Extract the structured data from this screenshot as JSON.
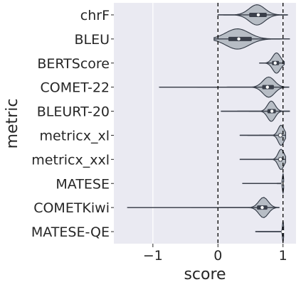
{
  "chart_data": {
    "type": "violin",
    "orientation": "horizontal",
    "xlabel": "score",
    "ylabel": "metric",
    "xlim": [
      -1.6,
      1.2
    ],
    "xticks": [
      -1,
      0,
      1
    ],
    "xtick_labels": [
      "−1",
      "0",
      "1"
    ],
    "reference_lines": [
      0,
      1
    ],
    "grid": true,
    "categories": [
      "chrF",
      "BLEU",
      "BERTScore",
      "COMET-22",
      "BLEURT-20",
      "metricx_xl",
      "metricx_xxl",
      "MATESE",
      "COMETKiwi",
      "MATESE-QE"
    ],
    "distributions": [
      {
        "metric": "chrF",
        "min": 0.0,
        "q1": 0.48,
        "median": 0.62,
        "q3": 0.75,
        "max": 1.07,
        "mode": 0.6,
        "spread": 0.45
      },
      {
        "metric": "BLEU",
        "min": -0.06,
        "q1": 0.16,
        "median": 0.32,
        "q3": 0.52,
        "max": 1.1,
        "mode": 0.3,
        "spread": 0.5
      },
      {
        "metric": "BERTScore",
        "min": 0.64,
        "q1": 0.83,
        "median": 0.88,
        "q3": 0.94,
        "max": 1.02,
        "mode": 0.9,
        "spread": 0.55
      },
      {
        "metric": "COMET-22",
        "min": -0.9,
        "q1": 0.68,
        "median": 0.76,
        "q3": 0.86,
        "max": 1.09,
        "mode": 0.78,
        "spread": 0.5
      },
      {
        "metric": "BLEURT-20",
        "min": 0.05,
        "q1": 0.76,
        "median": 0.83,
        "q3": 0.89,
        "max": 1.1,
        "mode": 0.82,
        "spread": 0.45
      },
      {
        "metric": "metricx_xl",
        "min": 0.34,
        "q1": 0.93,
        "median": 0.96,
        "q3": 0.99,
        "max": 1.04,
        "mode": 0.97,
        "spread": 0.75
      },
      {
        "metric": "metricx_xxl",
        "min": 0.34,
        "q1": 0.93,
        "median": 0.96,
        "q3": 0.99,
        "max": 1.04,
        "mode": 0.97,
        "spread": 0.75
      },
      {
        "metric": "MATESE",
        "min": 0.38,
        "q1": 0.99,
        "median": 1.0,
        "q3": 1.0,
        "max": 1.01,
        "mode": 1.0,
        "spread": 0.85
      },
      {
        "metric": "COMETKiwi",
        "min": -1.39,
        "q1": 0.6,
        "median": 0.68,
        "q3": 0.76,
        "max": 0.94,
        "mode": 0.7,
        "spread": 0.45
      },
      {
        "metric": "MATESE-QE",
        "min": 0.58,
        "q1": 0.99,
        "median": 1.0,
        "q3": 1.0,
        "max": 1.01,
        "mode": 1.0,
        "spread": 0.85
      }
    ]
  },
  "colors": {
    "plot_background": "#eaeaf2",
    "grid": "#ffffff",
    "violin_fill": "#b7bdc5",
    "violin_edge": "#2f3642",
    "box": "#3a3f4a",
    "median": "#ffffff",
    "reference_line": "#000000",
    "text": "#262626"
  }
}
